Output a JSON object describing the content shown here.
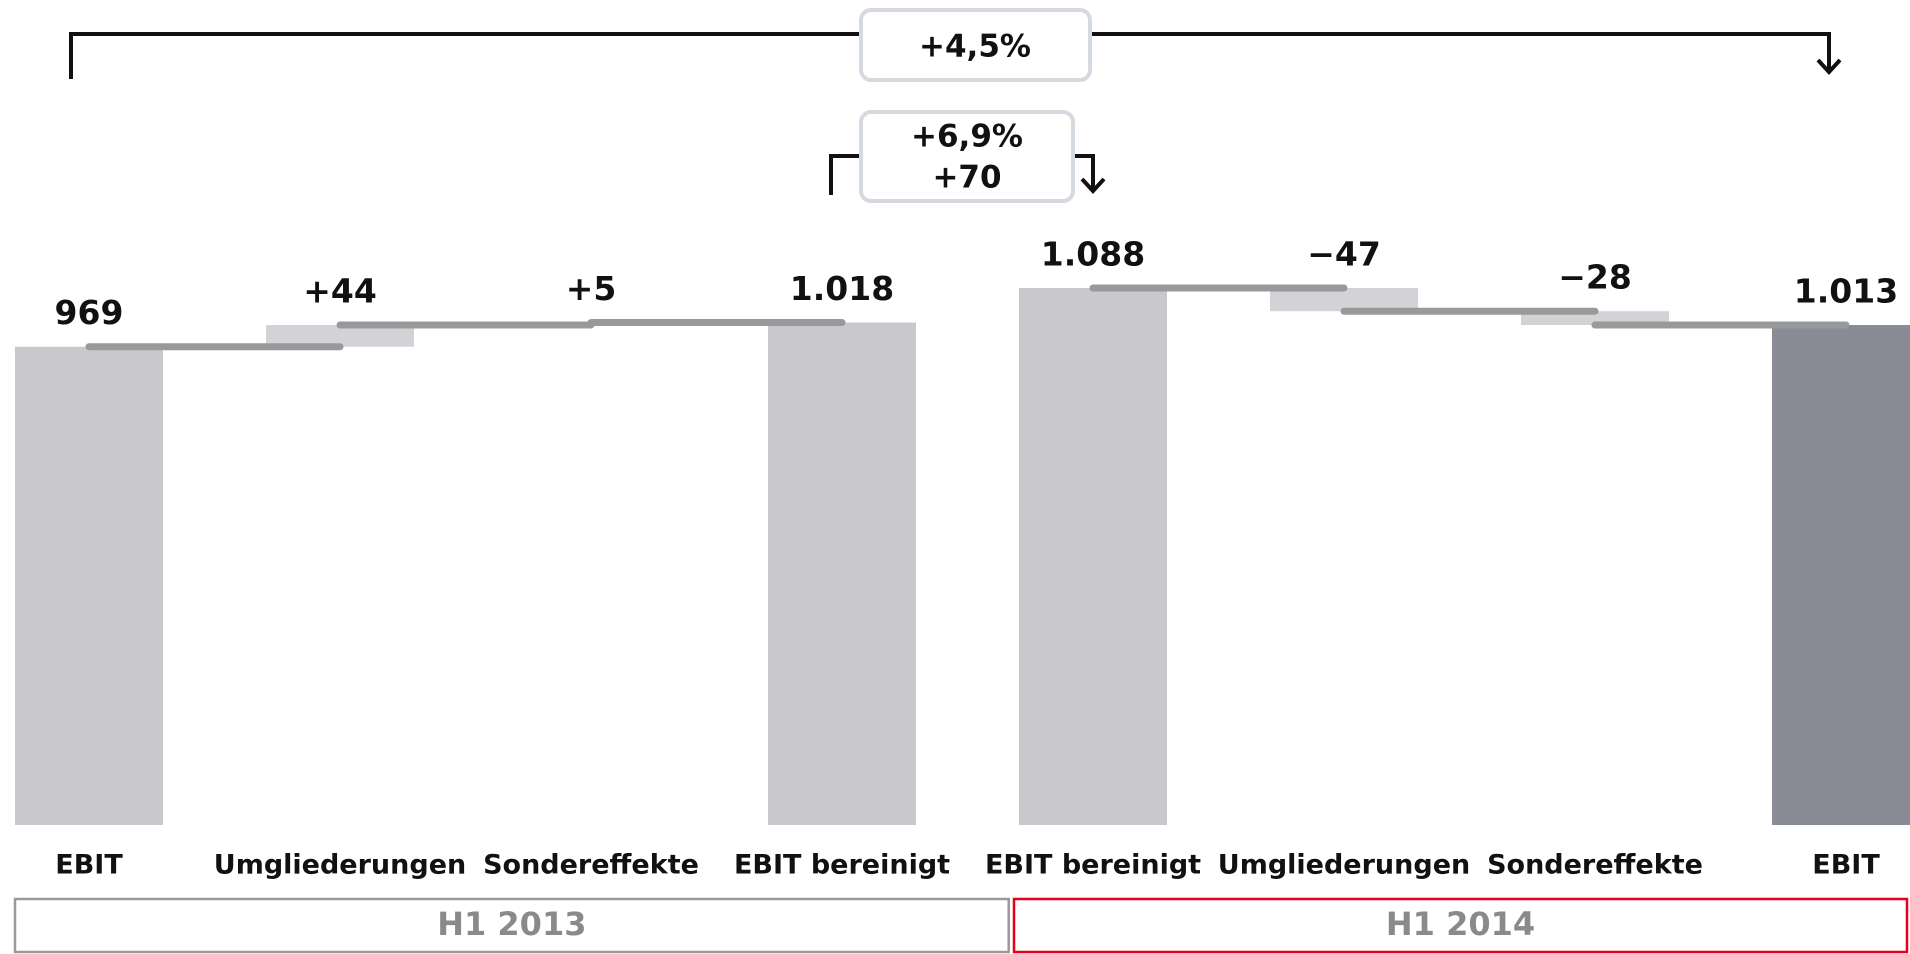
{
  "chart_data": {
    "type": "waterfall",
    "annotations": [
      "+4,5%",
      "+6,9%",
      "+70"
    ],
    "delta_color": "#d3d3d7",
    "connector_color": "#999999",
    "groups": [
      {
        "name": "H1 2013",
        "border_color": "#999999",
        "categories": [
          "EBIT",
          "Umgliederungen",
          "Sondereffekte",
          "EBIT bereinigt"
        ],
        "values": [
          969,
          44,
          5,
          1018
        ],
        "value_labels": [
          "969",
          "+44",
          "+5",
          "1.018"
        ],
        "colors": [
          "#c8c8cd",
          "#c8c8cd"
        ]
      },
      {
        "name": "H1 2014",
        "border_color": "#e2001a",
        "categories": [
          "EBIT bereinigt",
          "Umgliederungen",
          "Sondereffekte",
          "EBIT"
        ],
        "values": [
          1088,
          -47,
          -28,
          1013
        ],
        "value_labels": [
          "1.088",
          "−47",
          "−28",
          "1.013"
        ],
        "colors": [
          "#c8c8cd",
          "#898c96"
        ]
      }
    ]
  }
}
